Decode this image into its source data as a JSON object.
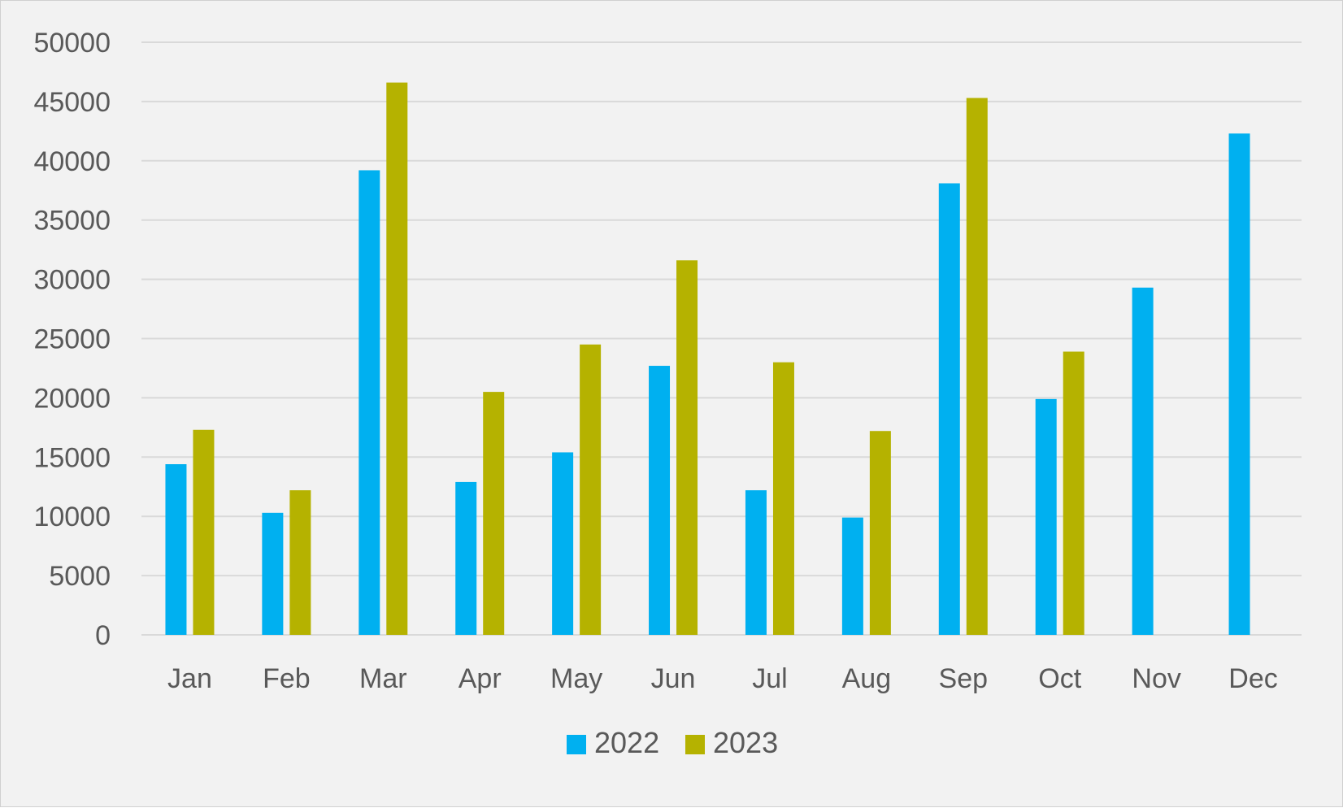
{
  "chart_data": {
    "type": "bar",
    "categories": [
      "Jan",
      "Feb",
      "Mar",
      "Apr",
      "May",
      "Jun",
      "Jul",
      "Aug",
      "Sep",
      "Oct",
      "Nov",
      "Dec"
    ],
    "series": [
      {
        "name": "2022",
        "color": "#00b0f0",
        "values": [
          14400,
          10300,
          39200,
          12900,
          15400,
          22700,
          12200,
          9900,
          38100,
          19900,
          29300,
          42300
        ]
      },
      {
        "name": "2023",
        "color": "#b5b200",
        "values": [
          17300,
          12200,
          46600,
          20500,
          24500,
          31600,
          23000,
          17200,
          45300,
          23900,
          null,
          null
        ]
      }
    ],
    "ylim": [
      0,
      50000
    ],
    "yticks": [
      0,
      5000,
      10000,
      15000,
      20000,
      25000,
      30000,
      35000,
      40000,
      45000,
      50000
    ],
    "grid": true,
    "legend_position": "bottom-center",
    "colors": {
      "background": "#f2f2f2",
      "gridline": "#d9d9d9",
      "text": "#595959"
    }
  }
}
